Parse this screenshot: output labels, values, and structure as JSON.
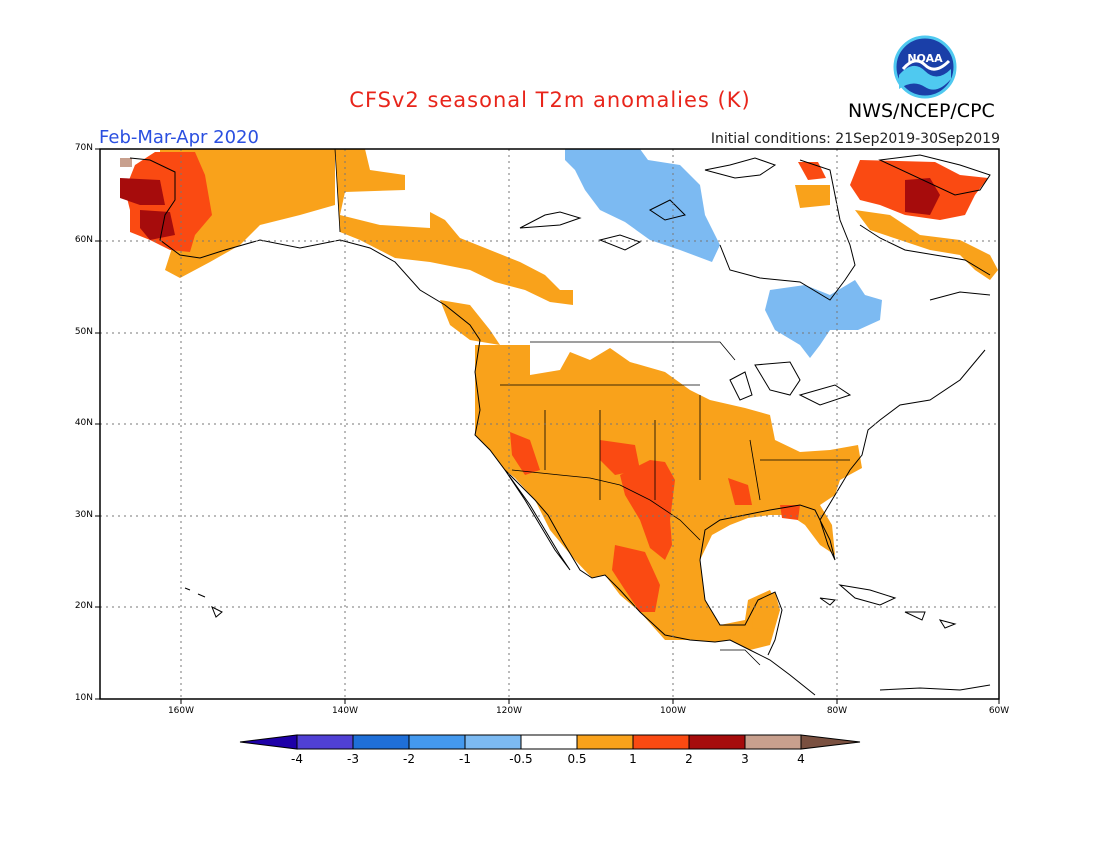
{
  "title": "CFSv2 seasonal T2m anomalies (K)",
  "agency": "NWS/NCEP/CPC",
  "logo_text": "NOAA",
  "period": "Feb-Mar-Apr 2020",
  "initial_conditions": "Initial conditions: 21Sep2019-30Sep2019",
  "map": {
    "lat_ticks": [
      "70N",
      "60N",
      "50N",
      "40N",
      "30N",
      "20N",
      "10N"
    ],
    "lon_ticks": [
      "160W",
      "140W",
      "120W",
      "100W",
      "80W",
      "60W"
    ],
    "gridlines": "dotted"
  },
  "colorbar": {
    "labels": [
      "-4",
      "-3",
      "-2",
      "-1",
      "-0.5",
      "0.5",
      "1",
      "2",
      "3",
      "4"
    ],
    "colors": [
      "#1e00a8",
      "#5040d4",
      "#1f6fd8",
      "#4499ee",
      "#7cbaf2",
      "#ffffff",
      "#f9a21b",
      "#fa4a12",
      "#a60c0c",
      "#c8a08e",
      "#7a5040"
    ]
  },
  "colors": {
    "anom_0_5_1": "#f9a21b",
    "anom_1_2": "#fa4a12",
    "anom_2_3": "#a60c0c",
    "anom_3_4": "#c8a08e",
    "anom_neg_0_5_1": "#7cbaf2"
  }
}
